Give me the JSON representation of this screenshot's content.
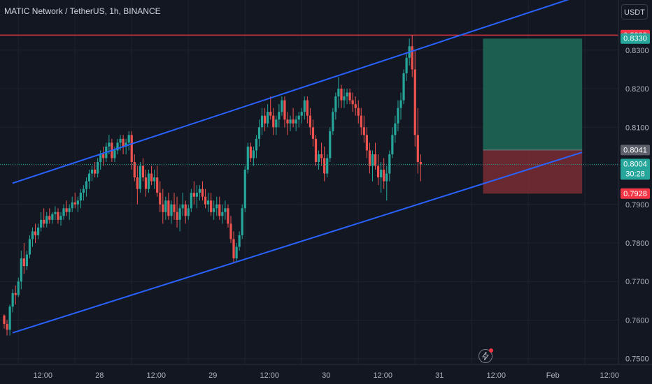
{
  "header": {
    "title": "MATIC Network / TetherUS, 1h, BINANCE",
    "currency": "USDT"
  },
  "colors": {
    "background": "#131722",
    "up": "#26a69a",
    "down": "#ef5350",
    "channel": "#2962ff",
    "resistance": "#f23645",
    "target_zone": "#1f6b57",
    "stop_zone": "#7a2b34",
    "axis_text": "#b2b5be"
  },
  "icons": {
    "replay": "lightning-icon"
  },
  "chart_data": {
    "type": "candlestick",
    "y_axis": {
      "min": 0.7485,
      "max": 0.843,
      "ticks": [
        "0.8300",
        "0.8200",
        "0.8100",
        "0.8000",
        "0.7900",
        "0.7800",
        "0.7700",
        "0.7600",
        "0.7500"
      ],
      "tick_values": [
        0.83,
        0.82,
        0.81,
        0.8,
        0.79,
        0.78,
        0.77,
        0.76,
        0.75
      ]
    },
    "x_axis": {
      "labels": [
        "12:00",
        "28",
        "12:00",
        "29",
        "12:00",
        "30",
        "12:00",
        "31",
        "12:00",
        "Feb",
        "12:00"
      ],
      "label_bar_index": [
        5,
        25,
        45,
        65,
        85,
        105,
        125,
        145,
        165,
        185,
        205
      ]
    },
    "price_labels": [
      {
        "text": "0.8339",
        "value": 0.8339,
        "color": "#f23645",
        "sub": ""
      },
      {
        "text": "0.8330",
        "value": 0.833,
        "color": "#26a69a",
        "sub": ""
      },
      {
        "text": "0.8041",
        "value": 0.8041,
        "color": "#5d606b",
        "sub": ""
      },
      {
        "text": "0.8004",
        "value": 0.8004,
        "color": "#26a69a",
        "sub": "30:28"
      },
      {
        "text": "0.7928",
        "value": 0.7928,
        "color": "#f23645",
        "sub": ""
      }
    ],
    "horizontal_line": 0.8339,
    "current_price": 0.8004,
    "channel": {
      "upper": [
        [
          0,
          0.7955
        ],
        [
          204,
          0.8443
        ]
      ],
      "lower": [
        [
          0,
          0.7567
        ],
        [
          204,
          0.8035
        ]
      ]
    },
    "position": {
      "entry": 0.8041,
      "target": 0.833,
      "stop": 0.7928,
      "start_bar": 169,
      "end_bar": 204
    },
    "candles": [
      [
        0.7612,
        0.7615,
        0.7578,
        0.759
      ],
      [
        0.759,
        0.76,
        0.756,
        0.7575
      ],
      [
        0.7575,
        0.764,
        0.756,
        0.7635
      ],
      [
        0.7635,
        0.768,
        0.762,
        0.767
      ],
      [
        0.767,
        0.769,
        0.764,
        0.7665
      ],
      [
        0.7665,
        0.771,
        0.766,
        0.77
      ],
      [
        0.77,
        0.778,
        0.768,
        0.776
      ],
      [
        0.776,
        0.78,
        0.772,
        0.774
      ],
      [
        0.774,
        0.778,
        0.773,
        0.777
      ],
      [
        0.777,
        0.782,
        0.776,
        0.781
      ],
      [
        0.781,
        0.784,
        0.779,
        0.783
      ],
      [
        0.783,
        0.785,
        0.78,
        0.782
      ],
      [
        0.782,
        0.785,
        0.781,
        0.784
      ],
      [
        0.784,
        0.788,
        0.783,
        0.786
      ],
      [
        0.786,
        0.789,
        0.784,
        0.785
      ],
      [
        0.785,
        0.788,
        0.784,
        0.787
      ],
      [
        0.787,
        0.789,
        0.785,
        0.786
      ],
      [
        0.786,
        0.788,
        0.785,
        0.7875
      ],
      [
        0.7875,
        0.7895,
        0.786,
        0.788
      ],
      [
        0.788,
        0.789,
        0.785,
        0.786
      ],
      [
        0.786,
        0.788,
        0.7845,
        0.787
      ],
      [
        0.787,
        0.79,
        0.786,
        0.789
      ],
      [
        0.789,
        0.791,
        0.787,
        0.788
      ],
      [
        0.788,
        0.79,
        0.786,
        0.789
      ],
      [
        0.789,
        0.792,
        0.788,
        0.7905
      ],
      [
        0.7905,
        0.793,
        0.789,
        0.79
      ],
      [
        0.79,
        0.792,
        0.788,
        0.791
      ],
      [
        0.791,
        0.794,
        0.789,
        0.793
      ],
      [
        0.793,
        0.795,
        0.791,
        0.794
      ],
      [
        0.794,
        0.797,
        0.792,
        0.796
      ],
      [
        0.796,
        0.799,
        0.794,
        0.798
      ],
      [
        0.798,
        0.8,
        0.796,
        0.799
      ],
      [
        0.799,
        0.801,
        0.797,
        0.798
      ],
      [
        0.798,
        0.802,
        0.797,
        0.801
      ],
      [
        0.801,
        0.804,
        0.799,
        0.803
      ],
      [
        0.803,
        0.805,
        0.8,
        0.802
      ],
      [
        0.802,
        0.806,
        0.801,
        0.805
      ],
      [
        0.805,
        0.808,
        0.803,
        0.806
      ],
      [
        0.806,
        0.807,
        0.801,
        0.802
      ],
      [
        0.802,
        0.805,
        0.801,
        0.804
      ],
      [
        0.804,
        0.807,
        0.803,
        0.806
      ],
      [
        0.806,
        0.808,
        0.804,
        0.807
      ],
      [
        0.807,
        0.808,
        0.803,
        0.805
      ],
      [
        0.805,
        0.807,
        0.803,
        0.806
      ],
      [
        0.806,
        0.809,
        0.804,
        0.808
      ],
      [
        0.808,
        0.809,
        0.799,
        0.801
      ],
      [
        0.801,
        0.803,
        0.796,
        0.797
      ],
      [
        0.797,
        0.8,
        0.79,
        0.794
      ],
      [
        0.794,
        0.801,
        0.793,
        0.8
      ],
      [
        0.8,
        0.802,
        0.796,
        0.797
      ],
      [
        0.797,
        0.799,
        0.792,
        0.794
      ],
      [
        0.794,
        0.799,
        0.793,
        0.798
      ],
      [
        0.798,
        0.8,
        0.795,
        0.796
      ],
      [
        0.796,
        0.799,
        0.794,
        0.797
      ],
      [
        0.797,
        0.8,
        0.792,
        0.793
      ],
      [
        0.793,
        0.796,
        0.788,
        0.79
      ],
      [
        0.79,
        0.794,
        0.785,
        0.788
      ],
      [
        0.788,
        0.792,
        0.786,
        0.791
      ],
      [
        0.791,
        0.793,
        0.786,
        0.787
      ],
      [
        0.787,
        0.791,
        0.785,
        0.79
      ],
      [
        0.79,
        0.793,
        0.786,
        0.788
      ],
      [
        0.788,
        0.792,
        0.784,
        0.786
      ],
      [
        0.786,
        0.79,
        0.783,
        0.789
      ],
      [
        0.789,
        0.793,
        0.787,
        0.79
      ],
      [
        0.79,
        0.791,
        0.785,
        0.787
      ],
      [
        0.787,
        0.79,
        0.786,
        0.789
      ],
      [
        0.789,
        0.794,
        0.788,
        0.793
      ],
      [
        0.793,
        0.796,
        0.79,
        0.792
      ],
      [
        0.792,
        0.795,
        0.789,
        0.793
      ],
      [
        0.793,
        0.795,
        0.791,
        0.794
      ],
      [
        0.794,
        0.796,
        0.791,
        0.792
      ],
      [
        0.792,
        0.794,
        0.789,
        0.79
      ],
      [
        0.79,
        0.793,
        0.788,
        0.791
      ],
      [
        0.791,
        0.793,
        0.787,
        0.788
      ],
      [
        0.788,
        0.791,
        0.786,
        0.789
      ],
      [
        0.789,
        0.792,
        0.787,
        0.79
      ],
      [
        0.79,
        0.792,
        0.786,
        0.787
      ],
      [
        0.787,
        0.79,
        0.785,
        0.788
      ],
      [
        0.788,
        0.791,
        0.786,
        0.789
      ],
      [
        0.789,
        0.79,
        0.784,
        0.785
      ],
      [
        0.785,
        0.787,
        0.78,
        0.781
      ],
      [
        0.781,
        0.783,
        0.775,
        0.776
      ],
      [
        0.776,
        0.78,
        0.775,
        0.779
      ],
      [
        0.779,
        0.783,
        0.778,
        0.782
      ],
      [
        0.782,
        0.79,
        0.781,
        0.789
      ],
      [
        0.789,
        0.8,
        0.788,
        0.799
      ],
      [
        0.799,
        0.806,
        0.798,
        0.805
      ],
      [
        0.805,
        0.806,
        0.801,
        0.802
      ],
      [
        0.802,
        0.805,
        0.8,
        0.804
      ],
      [
        0.804,
        0.808,
        0.802,
        0.807
      ],
      [
        0.807,
        0.812,
        0.805,
        0.81
      ],
      [
        0.81,
        0.815,
        0.808,
        0.813
      ],
      [
        0.813,
        0.815,
        0.809,
        0.811
      ],
      [
        0.811,
        0.816,
        0.81,
        0.814
      ],
      [
        0.814,
        0.818,
        0.812,
        0.813
      ],
      [
        0.813,
        0.815,
        0.808,
        0.81
      ],
      [
        0.81,
        0.813,
        0.808,
        0.812
      ],
      [
        0.812,
        0.816,
        0.81,
        0.814
      ],
      [
        0.814,
        0.818,
        0.813,
        0.817
      ],
      [
        0.817,
        0.818,
        0.81,
        0.812
      ],
      [
        0.812,
        0.814,
        0.808,
        0.811
      ],
      [
        0.811,
        0.813,
        0.809,
        0.812
      ],
      [
        0.812,
        0.815,
        0.81,
        0.811
      ],
      [
        0.811,
        0.813,
        0.809,
        0.812
      ],
      [
        0.812,
        0.814,
        0.81,
        0.813
      ],
      [
        0.813,
        0.815,
        0.811,
        0.814
      ],
      [
        0.814,
        0.818,
        0.812,
        0.817
      ],
      [
        0.817,
        0.818,
        0.811,
        0.813
      ],
      [
        0.813,
        0.815,
        0.808,
        0.81
      ],
      [
        0.81,
        0.812,
        0.805,
        0.807
      ],
      [
        0.807,
        0.808,
        0.8,
        0.801
      ],
      [
        0.801,
        0.804,
        0.799,
        0.803
      ],
      [
        0.803,
        0.806,
        0.8,
        0.802
      ],
      [
        0.802,
        0.805,
        0.796,
        0.798
      ],
      [
        0.798,
        0.803,
        0.797,
        0.802
      ],
      [
        0.802,
        0.81,
        0.801,
        0.809
      ],
      [
        0.809,
        0.815,
        0.808,
        0.814
      ],
      [
        0.814,
        0.819,
        0.812,
        0.818
      ],
      [
        0.818,
        0.823,
        0.815,
        0.82
      ],
      [
        0.82,
        0.821,
        0.815,
        0.817
      ],
      [
        0.817,
        0.82,
        0.815,
        0.818
      ],
      [
        0.818,
        0.82,
        0.816,
        0.819
      ],
      [
        0.819,
        0.82,
        0.816,
        0.817
      ],
      [
        0.817,
        0.819,
        0.814,
        0.816
      ],
      [
        0.816,
        0.818,
        0.813,
        0.815
      ],
      [
        0.815,
        0.817,
        0.811,
        0.813
      ],
      [
        0.813,
        0.815,
        0.808,
        0.81
      ],
      [
        0.81,
        0.813,
        0.806,
        0.808
      ],
      [
        0.808,
        0.81,
        0.802,
        0.804
      ],
      [
        0.804,
        0.806,
        0.798,
        0.8
      ],
      [
        0.8,
        0.804,
        0.796,
        0.803
      ],
      [
        0.803,
        0.806,
        0.799,
        0.8
      ],
      [
        0.8,
        0.803,
        0.795,
        0.797
      ],
      [
        0.797,
        0.801,
        0.793,
        0.799
      ],
      [
        0.799,
        0.802,
        0.794,
        0.796
      ],
      [
        0.796,
        0.8,
        0.791,
        0.798
      ],
      [
        0.798,
        0.804,
        0.796,
        0.803
      ],
      [
        0.803,
        0.81,
        0.802,
        0.808
      ],
      [
        0.808,
        0.813,
        0.806,
        0.811
      ],
      [
        0.811,
        0.817,
        0.809,
        0.815
      ],
      [
        0.815,
        0.819,
        0.812,
        0.817
      ],
      [
        0.817,
        0.825,
        0.816,
        0.824
      ],
      [
        0.824,
        0.829,
        0.822,
        0.828
      ],
      [
        0.828,
        0.833,
        0.826,
        0.831
      ],
      [
        0.831,
        0.834,
        0.823,
        0.825
      ],
      [
        0.825,
        0.83,
        0.805,
        0.808
      ],
      [
        0.808,
        0.815,
        0.798,
        0.801
      ],
      [
        0.801,
        0.803,
        0.796,
        0.8004
      ]
    ]
  }
}
